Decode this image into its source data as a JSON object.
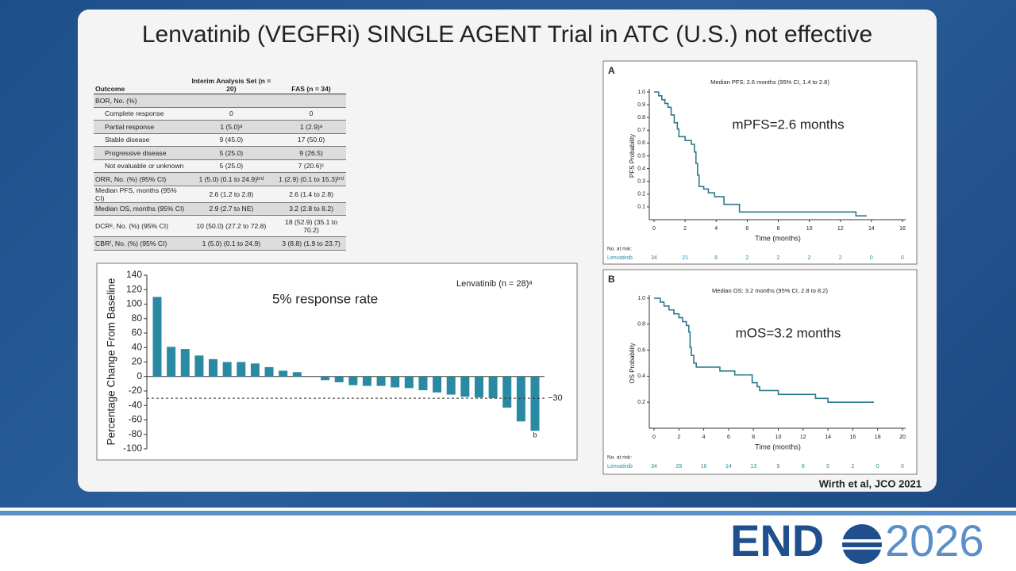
{
  "title": "Lenvatinib (VEGFRi) SINGLE AGENT Trial in ATC (U.S.) not effective",
  "table": {
    "header": [
      "Outcome",
      "Interim Analysis Set (n = 20)",
      "FAS (n = 34)"
    ],
    "rows": [
      [
        "BOR, No. (%)",
        "",
        ""
      ],
      [
        "Complete response",
        "0",
        "0"
      ],
      [
        "Partial response",
        "1 (5.0)ᵃ",
        "1 (2.9)ᵃ"
      ],
      [
        "Stable disease",
        "9 (45.0)",
        "17 (50.0)"
      ],
      [
        "Progressive disease",
        "5 (25.0)",
        "9 (26.5)"
      ],
      [
        "Not evaluable or unknown",
        "5 (25.0)",
        "7 (20.6)ᶜ"
      ],
      [
        "ORR, No. (%) (95% CI)",
        "1 (5.0) (0.1 to 24.9)ᵇ'ᵈ",
        "1 (2.9) (0.1 to 15.3)ᵇ'ᵈ"
      ],
      [
        "Median PFS, months (95% CI)",
        "2.6 (1.2 to 2.8)",
        "2.6 (1.4 to 2.8)"
      ],
      [
        "Median OS, months (95% CI)",
        "2.9 (2.7 to NE)",
        "3.2 (2.8 to 8.2)"
      ],
      [
        "DCRᵉ, No. (%) (95% CI)",
        "10 (50.0) (27.2 to 72.8)",
        "18 (52.9) (35.1 to 70.2)"
      ],
      [
        "CBRᶠ, No. (%) (95% CI)",
        "1 (5.0) (0.1 to 24.9)",
        "3 (8.8) (1.9 to 23.7)"
      ]
    ]
  },
  "chart_data": [
    {
      "type": "bar",
      "y_label": "Percentage Change From Baseline",
      "legend_label": "Lenvatinib (n = 28)ᵃ",
      "annotation": "5% response rate",
      "footnote_mark": "b",
      "threshold": {
        "value": -30,
        "label": "−30"
      },
      "color": "#2a8aa3",
      "values": [
        110,
        41,
        38,
        29,
        24,
        20,
        20,
        18,
        13,
        8,
        6,
        0,
        -5,
        -8,
        -12,
        -13,
        -13,
        -15,
        -16,
        -19,
        -22,
        -25,
        -28,
        -29,
        -30,
        -43,
        -62,
        -75
      ],
      "ylim": [
        -100,
        140
      ],
      "yticks": [
        -100,
        -80,
        -60,
        -40,
        -20,
        0,
        20,
        40,
        60,
        80,
        100,
        120,
        140
      ]
    },
    {
      "type": "line",
      "step": true,
      "panel": "A",
      "title": "Median PFS: 2.6 months (95% CI, 1.4 to 2.8)",
      "annotation": "mPFS=2.6 months",
      "x_label": "Time (months)",
      "y_label": "PFS Probability",
      "color": "#2d7a8c",
      "x": [
        0,
        0.3,
        0.5,
        0.7,
        0.9,
        1.1,
        1.3,
        1.5,
        1.6,
        2.0,
        2.4,
        2.6,
        2.7,
        2.8,
        2.9,
        3.2,
        3.5,
        3.9,
        4.5,
        5.5,
        13,
        13.7
      ],
      "values": [
        1.0,
        0.97,
        0.94,
        0.91,
        0.88,
        0.82,
        0.76,
        0.71,
        0.65,
        0.62,
        0.59,
        0.53,
        0.44,
        0.35,
        0.26,
        0.24,
        0.21,
        0.18,
        0.12,
        0.06,
        0.03,
        0.03
      ],
      "xlim": [
        0,
        16
      ],
      "xticks": [
        0,
        2,
        4,
        6,
        8,
        10,
        12,
        14,
        16
      ],
      "ylim": [
        0,
        1
      ],
      "yticks": [
        0.1,
        0.2,
        0.3,
        0.4,
        0.5,
        0.6,
        0.7,
        0.8,
        0.9,
        {
          "value": 1,
          "label": "1.0"
        }
      ],
      "risk_table": {
        "title": "No. at risk:",
        "label": "Lenvatinib",
        "values": [
          34,
          21,
          6,
          2,
          2,
          2,
          2,
          0,
          0
        ]
      }
    },
    {
      "type": "line",
      "step": true,
      "panel": "B",
      "title": "Median OS: 3.2 months (95% CI, 2.8 to 8.2)",
      "annotation": "mOS=3.2 months",
      "x_label": "Time (months)",
      "y_label": "OS Probability",
      "color": "#2d7a8c",
      "x": [
        0,
        0.5,
        0.8,
        1.2,
        1.6,
        2.0,
        2.3,
        2.6,
        2.8,
        2.9,
        3.0,
        3.2,
        3.4,
        5.3,
        6.5,
        7.9,
        8.3,
        8.5,
        10.0,
        13.0,
        14.0,
        17.7
      ],
      "values": [
        1.0,
        0.97,
        0.94,
        0.91,
        0.88,
        0.85,
        0.82,
        0.79,
        0.74,
        0.62,
        0.56,
        0.5,
        0.47,
        0.44,
        0.41,
        0.35,
        0.32,
        0.29,
        0.26,
        0.23,
        0.2,
        0.2
      ],
      "xlim": [
        0,
        20
      ],
      "xticks": [
        0,
        2,
        4,
        6,
        8,
        10,
        12,
        14,
        16,
        18,
        20
      ],
      "ylim": [
        0,
        1
      ],
      "yticks": [
        0.2,
        0.4,
        0.6,
        0.8,
        {
          "value": 1,
          "label": "1.0"
        }
      ],
      "risk_table": {
        "title": "No. at risk:",
        "label": "Lenvatinib",
        "values": [
          34,
          29,
          16,
          14,
          13,
          9,
          8,
          5,
          2,
          0,
          0
        ]
      }
    }
  ],
  "citation": "Wirth et al, JCO 2021",
  "logo": {
    "left": "END",
    "right": "2026"
  }
}
